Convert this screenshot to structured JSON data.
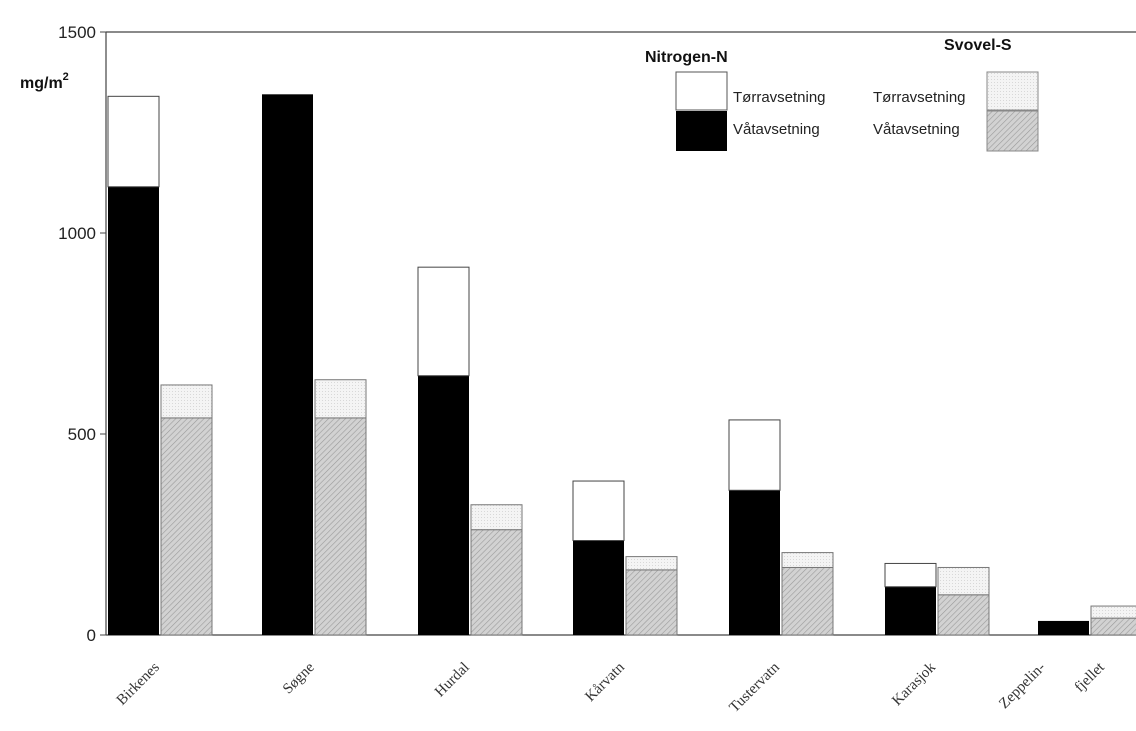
{
  "chart_data": {
    "type": "bar",
    "stacked": true,
    "ylabel": "mg/m",
    "ylabel_superscript": "2",
    "ylim": [
      0,
      1500
    ],
    "yticks": [
      0,
      500,
      1000,
      1500
    ],
    "categories": [
      "Birkenes",
      "Søgne",
      "Hurdal",
      "Kårvatn",
      "Tustervatn",
      "Karasjok",
      "Zeppelin-fjellet"
    ],
    "category_labels": [
      "Birkenes",
      "Søgne",
      "Hurdal",
      "Kårvatn",
      "Tustervatn",
      "Karasjok",
      "Zeppelin-",
      "fjellet"
    ],
    "groups": [
      {
        "title": "Nitrogen-N",
        "colors": {
          "wet": "#000000",
          "dry": "#ffffff"
        },
        "pattern": "solid",
        "wet_label": "Våtavsetning",
        "dry_label": "Tørravsetning",
        "wet": [
          1115,
          1345,
          645,
          235,
          360,
          120,
          35
        ],
        "dry": [
          225,
          0,
          270,
          148,
          175,
          58,
          0
        ]
      },
      {
        "title": "Svovel-S",
        "colors": {
          "wet": "#c8c8c8",
          "dry": "#f2f2f2"
        },
        "pattern": "hatched",
        "wet_label": "Våtavsetning",
        "dry_label": "Tørravsetning",
        "wet": [
          540,
          540,
          262,
          162,
          168,
          100,
          42
        ],
        "dry": [
          82,
          95,
          62,
          33,
          37,
          68,
          30
        ]
      }
    ],
    "grid": false,
    "legend": "top-right"
  }
}
